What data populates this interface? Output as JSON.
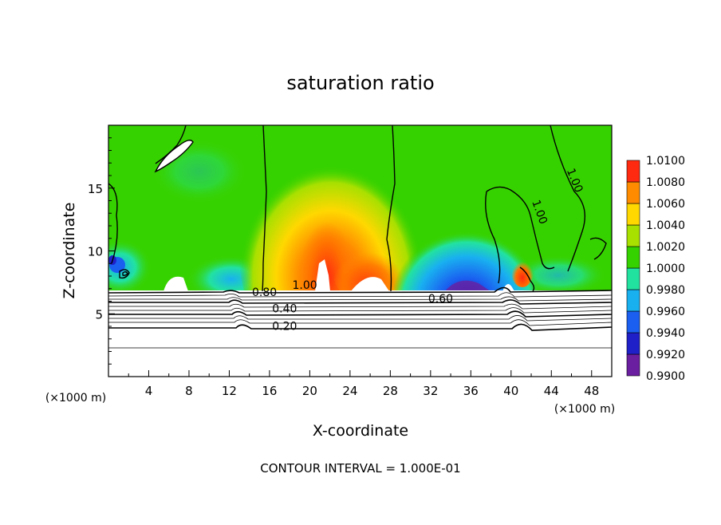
{
  "chart_data": {
    "type": "heatmap",
    "title": "saturation ratio",
    "xlabel": "X-coordinate",
    "ylabel": "Z-coordinate",
    "x_unit": "(×1000 m)",
    "y_unit": "(×1000 m)",
    "footer": "CONTOUR INTERVAL = 1.000E-01",
    "xlim": [
      0,
      50
    ],
    "ylim": [
      0,
      20
    ],
    "x_ticks": [
      4,
      8,
      12,
      16,
      20,
      24,
      28,
      32,
      36,
      40,
      44,
      48
    ],
    "y_ticks": [
      5,
      10,
      15
    ],
    "colorbar": {
      "levels": [
        "0.9900",
        "0.9920",
        "0.9940",
        "0.9960",
        "0.9980",
        "1.0000",
        "1.0020",
        "1.0040",
        "1.0060",
        "1.0080",
        "1.0100"
      ],
      "colors": [
        "#6a1fa0",
        "#2020c8",
        "#1a5ff0",
        "#19b0f0",
        "#22e2a0",
        "#36d200",
        "#a8e000",
        "#ffd800",
        "#ff8c00",
        "#ff2a10",
        "#ff8888"
      ]
    },
    "fields": [
      {
        "name": "green background",
        "x": 0,
        "z": 13,
        "value": 1.0
      },
      {
        "name": "central warm plume",
        "x": 22,
        "z": 10.5,
        "value": 1.006
      },
      {
        "name": "central plume core",
        "x": 21.5,
        "z": 8.5,
        "value": 1.008
      },
      {
        "name": "right plume core",
        "x": 25,
        "z": 8.5,
        "value": 1.006
      },
      {
        "name": "blue subsaturated region",
        "x": 34.5,
        "z": 8.5,
        "value": 0.992
      },
      {
        "name": "left cyan band",
        "x": 12,
        "z": 8,
        "value": 0.996
      },
      {
        "name": "plume near x=41",
        "x": 41,
        "z": 8,
        "value": 1.006
      }
    ],
    "contour_labels": [
      {
        "text": "1.00",
        "x": 19.5,
        "z": 7.0
      },
      {
        "text": "0.80",
        "x": 15.5,
        "z": 6.4
      },
      {
        "text": "0.60",
        "x": 33,
        "z": 5.9
      },
      {
        "text": "0.40",
        "x": 17.5,
        "z": 5.1
      },
      {
        "text": "0.20",
        "x": 17.5,
        "z": 3.7
      },
      {
        "text": "1.00",
        "x": 42.5,
        "z": 13
      },
      {
        "text": "1.00",
        "x": 46,
        "z": 15.5
      }
    ]
  }
}
